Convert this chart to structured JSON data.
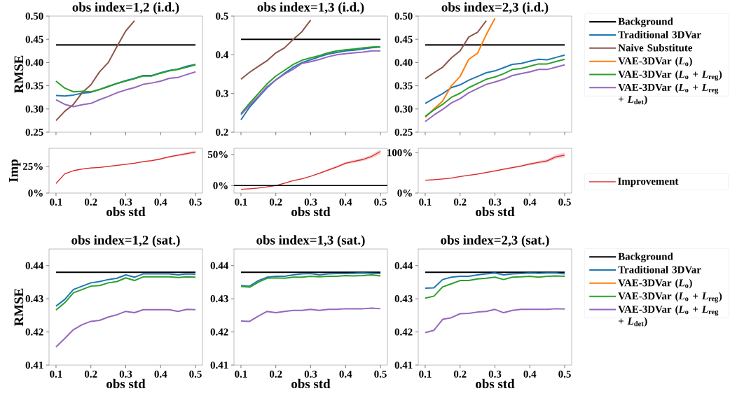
{
  "chart_data": [
    {
      "type": "line",
      "title": "obs index=1,2 (i.d.)",
      "ylabel": "RMSE",
      "tick_labels": "y",
      "x": [
        0.1,
        0.125,
        0.15,
        0.175,
        0.2,
        0.225,
        0.25,
        0.275,
        0.3,
        0.325,
        0.35,
        0.375,
        0.4,
        0.425,
        0.45,
        0.475,
        0.5
      ],
      "xlim": [
        0.08,
        0.52
      ],
      "xticks": [
        0.1,
        0.2,
        0.3,
        0.4,
        0.5
      ],
      "ylim": [
        0.25,
        0.5
      ],
      "yticks": [
        0.25,
        {
          "value": 0.3,
          "label": "0.30"
        },
        0.35,
        {
          "value": 0.4,
          "label": "0.40"
        },
        0.45,
        {
          "value": 0.5,
          "label": "0.50"
        }
      ],
      "series": [
        {
          "color": "#000000",
          "values": [
            0.438,
            0.438,
            0.438,
            0.438,
            0.438,
            0.438,
            0.438,
            0.438,
            0.438,
            0.438,
            0.438,
            0.438,
            0.438,
            0.438,
            0.438,
            0.438,
            0.438
          ]
        },
        {
          "color": "#1f77b4",
          "values": [
            0.329,
            0.328,
            0.33,
            0.334,
            0.336,
            0.342,
            0.348,
            0.355,
            0.361,
            0.366,
            0.372,
            0.372,
            0.378,
            0.383,
            0.386,
            0.392,
            0.396
          ]
        },
        {
          "color": "#8c564b",
          "values": [
            0.275,
            0.295,
            0.31,
            0.335,
            0.352,
            0.38,
            0.4,
            0.435,
            0.468,
            0.49,
            null,
            null,
            null,
            null,
            null,
            null,
            null
          ]
        },
        {
          "color": "#2ca02c",
          "values": [
            0.36,
            0.345,
            0.337,
            0.338,
            0.337,
            0.342,
            0.349,
            0.355,
            0.36,
            0.365,
            0.371,
            0.371,
            0.377,
            0.382,
            0.385,
            0.39,
            0.395
          ]
        },
        {
          "color": "#9467bd",
          "values": [
            0.32,
            0.31,
            0.305,
            0.309,
            0.312,
            0.32,
            0.327,
            0.335,
            0.341,
            0.346,
            0.353,
            0.356,
            0.36,
            0.366,
            0.368,
            0.374,
            0.38
          ]
        }
      ]
    },
    {
      "type": "line",
      "title": "obs index=1,3 (i.d.)",
      "tick_labels": "y",
      "x": [
        0.1,
        0.125,
        0.15,
        0.175,
        0.2,
        0.225,
        0.25,
        0.275,
        0.3,
        0.325,
        0.35,
        0.375,
        0.4,
        0.425,
        0.45,
        0.475,
        0.5
      ],
      "xlim": [
        0.08,
        0.52
      ],
      "xticks": [
        0.1,
        0.2,
        0.3,
        0.4,
        0.5
      ],
      "ylim": [
        0.2,
        0.5
      ],
      "yticks": [
        0.2,
        0.3,
        0.4,
        0.5
      ],
      "series": [
        {
          "color": "#000000",
          "values": [
            0.44,
            0.44,
            0.44,
            0.44,
            0.44,
            0.44,
            0.44,
            0.44,
            0.44,
            0.44,
            0.44,
            0.44,
            0.44,
            0.44,
            0.44,
            0.44,
            0.44
          ]
        },
        {
          "color": "#1f77b4",
          "values": [
            0.232,
            0.265,
            0.29,
            0.315,
            0.335,
            0.352,
            0.368,
            0.38,
            0.387,
            0.395,
            0.402,
            0.406,
            0.41,
            0.412,
            0.415,
            0.418,
            0.42
          ]
        },
        {
          "color": "#8c564b",
          "values": [
            0.337,
            0.355,
            0.37,
            0.385,
            0.405,
            0.418,
            0.44,
            0.46,
            0.49,
            null,
            null,
            null,
            null,
            null,
            null,
            null,
            null
          ]
        },
        {
          "color": "#2ca02c",
          "values": [
            0.248,
            0.275,
            0.3,
            0.325,
            0.345,
            0.36,
            0.375,
            0.386,
            0.392,
            0.398,
            0.405,
            0.41,
            0.413,
            0.415,
            0.418,
            0.42,
            0.421
          ]
        },
        {
          "color": "#9467bd",
          "values": [
            0.245,
            0.27,
            0.293,
            0.318,
            0.335,
            0.35,
            0.363,
            0.378,
            0.382,
            0.388,
            0.395,
            0.4,
            0.403,
            0.405,
            0.407,
            0.41,
            0.41
          ]
        }
      ]
    },
    {
      "type": "line",
      "title": "obs index=2,3 (i.d.)",
      "tick_labels": "y",
      "legend": "right",
      "x": [
        0.1,
        0.125,
        0.15,
        0.175,
        0.2,
        0.225,
        0.25,
        0.275,
        0.3,
        0.325,
        0.35,
        0.375,
        0.4,
        0.425,
        0.45,
        0.475,
        0.5
      ],
      "xlim": [
        0.08,
        0.52
      ],
      "xticks": [
        0.1,
        0.2,
        0.3,
        0.4,
        0.5
      ],
      "ylim": [
        0.25,
        0.5
      ],
      "yticks": [
        0.25,
        {
          "value": 0.3,
          "label": "0.30"
        },
        0.35,
        {
          "value": 0.4,
          "label": "0.40"
        },
        0.45,
        {
          "value": 0.5,
          "label": "0.50"
        }
      ],
      "series": [
        {
          "name": "Background",
          "color": "#000000",
          "values": [
            0.438,
            0.438,
            0.438,
            0.438,
            0.438,
            0.438,
            0.438,
            0.438,
            0.438,
            0.438,
            0.438,
            0.438,
            0.438,
            0.438,
            0.438,
            0.438,
            0.438
          ]
        },
        {
          "name": "Traditional 3DVar",
          "color": "#1f77b4",
          "values": [
            0.312,
            0.323,
            0.333,
            0.346,
            0.352,
            0.362,
            0.37,
            0.378,
            0.382,
            0.389,
            0.396,
            0.398,
            0.403,
            0.407,
            0.406,
            0.411,
            0.416
          ]
        },
        {
          "name": "Naive Substitute",
          "color": "#8c564b",
          "values": [
            0.365,
            0.378,
            0.39,
            0.41,
            0.425,
            0.455,
            0.465,
            0.49,
            null,
            null,
            null,
            null,
            null,
            null,
            null,
            null,
            null
          ]
        },
        {
          "name": "VAE-3DVar (*L*$_{o}$)",
          "color": "#ff7f0e",
          "values": [
            0.282,
            0.3,
            0.317,
            0.35,
            0.37,
            0.407,
            0.42,
            0.46,
            0.495,
            null,
            null,
            null,
            null,
            null,
            null,
            null,
            null
          ]
        },
        {
          "name": "VAE-3DVar (*L*$_{o}$ + *L*$_{reg}$)",
          "color": "#2ca02c",
          "values": [
            0.284,
            0.298,
            0.31,
            0.325,
            0.334,
            0.346,
            0.355,
            0.364,
            0.369,
            0.376,
            0.385,
            0.387,
            0.392,
            0.397,
            0.397,
            0.402,
            0.407
          ]
        },
        {
          "name": "VAE-3DVar (*L*$_{o}$ + *L*$_{reg}$ + *L*$_{det}$)",
          "color": "#9467bd",
          "values": [
            0.273,
            0.287,
            0.299,
            0.313,
            0.322,
            0.335,
            0.344,
            0.353,
            0.358,
            0.364,
            0.372,
            0.376,
            0.38,
            0.385,
            0.385,
            0.39,
            0.395
          ]
        }
      ]
    },
    {
      "type": "line",
      "xlabel": "obs std",
      "ylabel": "Imp",
      "x": [
        0.1,
        0.125,
        0.15,
        0.175,
        0.2,
        0.225,
        0.25,
        0.275,
        0.3,
        0.325,
        0.35,
        0.375,
        0.4,
        0.425,
        0.45,
        0.475,
        0.5
      ],
      "xlim": [
        0.08,
        0.52
      ],
      "xticks": [
        0.1,
        0.2,
        0.3,
        0.4,
        0.5
      ],
      "ylim": [
        0,
        42
      ],
      "yticks": [
        {
          "value": 0,
          "label": "0%"
        },
        {
          "value": 25,
          "label": "25%"
        }
      ],
      "series": [
        {
          "color": "#d62728",
          "values": [
            9,
            18,
            21,
            22.5,
            23.5,
            24,
            25,
            26,
            27,
            28,
            29.5,
            30.5,
            32,
            34,
            35.5,
            37,
            38.5
          ],
          "lower": [
            8.5,
            17.5,
            20.5,
            22,
            23,
            23.5,
            24.5,
            25.5,
            26.5,
            27.5,
            28.8,
            29.8,
            31.2,
            33,
            34.5,
            35.8,
            37.2
          ],
          "upper": [
            9.5,
            18.5,
            21.5,
            23,
            24,
            24.5,
            25.5,
            26.5,
            27.5,
            28.5,
            30.2,
            31.2,
            32.8,
            35,
            36.5,
            38.2,
            39.8
          ]
        }
      ]
    },
    {
      "type": "line",
      "xlabel": "obs std",
      "x": [
        0.1,
        0.125,
        0.15,
        0.175,
        0.2,
        0.225,
        0.25,
        0.275,
        0.3,
        0.325,
        0.35,
        0.375,
        0.4,
        0.425,
        0.45,
        0.475,
        0.5
      ],
      "xlim": [
        0.08,
        0.52
      ],
      "xticks": [
        0.1,
        0.2,
        0.3,
        0.4,
        0.5
      ],
      "ylim": [
        -12,
        60
      ],
      "yticks": [
        {
          "value": 0,
          "label": "0%"
        },
        {
          "value": 50,
          "label": "50%"
        }
      ],
      "ref_lines": [
        {
          "axis": "y",
          "value": 0,
          "color": "#000000"
        }
      ],
      "series": [
        {
          "color": "#d62728",
          "values": [
            -6,
            -5,
            -4,
            -2,
            0,
            4,
            8,
            11,
            15,
            20,
            25,
            30,
            36,
            39,
            42,
            47,
            55
          ],
          "lower": [
            -6.5,
            -5.5,
            -4,
            -2.5,
            -0.5,
            3,
            6.8,
            10.2,
            14,
            18.3,
            23.5,
            28.2,
            34,
            36.8,
            39.5,
            44,
            50.5
          ],
          "upper": [
            -5.5,
            -4.5,
            -3,
            -1.5,
            0.5,
            4,
            8.2,
            11.8,
            16,
            20.7,
            26.5,
            31.8,
            38,
            41.2,
            44.5,
            50,
            58.5
          ]
        }
      ]
    },
    {
      "type": "line",
      "xlabel": "obs std",
      "legend": "right",
      "x": [
        0.1,
        0.125,
        0.15,
        0.175,
        0.2,
        0.225,
        0.25,
        0.275,
        0.3,
        0.325,
        0.35,
        0.375,
        0.4,
        0.425,
        0.45,
        0.475,
        0.5
      ],
      "xlim": [
        0.08,
        0.52
      ],
      "xticks": [
        0.1,
        0.2,
        0.3,
        0.4,
        0.5
      ],
      "ylim": [
        0,
        111
      ],
      "yticks": [
        {
          "value": 0,
          "label": "0%"
        },
        {
          "value": 100,
          "label": "100%"
        }
      ],
      "series": [
        {
          "name": "Improvement",
          "color": "#d62728",
          "values": [
            32,
            33,
            35,
            37,
            41,
            44,
            47,
            51,
            55,
            59,
            63,
            67,
            72,
            76,
            80,
            90,
            94
          ],
          "lower": [
            31,
            32,
            34,
            36,
            40,
            43,
            45.5,
            49.5,
            53,
            57,
            60.5,
            64.5,
            69,
            72.5,
            76,
            85,
            88
          ],
          "upper": [
            33,
            34,
            36,
            38,
            42,
            45,
            48.5,
            52.5,
            57,
            61,
            65.5,
            69.5,
            75,
            79.5,
            84,
            95,
            100
          ]
        }
      ]
    },
    {
      "type": "line",
      "title": "obs index=1,2 (sat.)",
      "xlabel": "obs std",
      "ylabel": "RMSE",
      "x": [
        0.1,
        0.125,
        0.15,
        0.175,
        0.2,
        0.225,
        0.25,
        0.275,
        0.3,
        0.325,
        0.35,
        0.375,
        0.4,
        0.425,
        0.45,
        0.475,
        0.5
      ],
      "xlim": [
        0.08,
        0.52
      ],
      "xticks": [
        0.1,
        0.2,
        0.3,
        0.4,
        0.5
      ],
      "ylim": [
        0.41,
        0.445
      ],
      "yticks": [
        0.41,
        0.42,
        0.43,
        0.44
      ],
      "series": [
        {
          "color": "#000000",
          "values": [
            0.438,
            0.438,
            0.438,
            0.438,
            0.438,
            0.438,
            0.438,
            0.438,
            0.438,
            0.438,
            0.438,
            0.438,
            0.438,
            0.438,
            0.438,
            0.438,
            0.438
          ]
        },
        {
          "color": "#1f77b4",
          "values": [
            0.4278,
            0.4298,
            0.4328,
            0.4338,
            0.4348,
            0.4352,
            0.4358,
            0.4362,
            0.4372,
            0.4365,
            0.4375,
            0.4375,
            0.4375,
            0.4375,
            0.4372,
            0.4375,
            0.4374
          ]
        },
        {
          "color": "#2ca02c",
          "values": [
            0.4266,
            0.4288,
            0.4318,
            0.4328,
            0.4338,
            0.434,
            0.4348,
            0.4352,
            0.4363,
            0.4355,
            0.4366,
            0.4366,
            0.4366,
            0.4366,
            0.4364,
            0.4366,
            0.4365
          ]
        },
        {
          "color": "#9467bd",
          "values": [
            0.4155,
            0.418,
            0.4207,
            0.4222,
            0.4232,
            0.4235,
            0.4245,
            0.4252,
            0.4262,
            0.4258,
            0.4267,
            0.4267,
            0.4267,
            0.4267,
            0.4262,
            0.4268,
            0.4267
          ]
        }
      ]
    },
    {
      "type": "line",
      "title": "obs index=1,3 (sat.)",
      "xlabel": "obs std",
      "x": [
        0.1,
        0.125,
        0.15,
        0.175,
        0.2,
        0.225,
        0.25,
        0.275,
        0.3,
        0.325,
        0.35,
        0.375,
        0.4,
        0.425,
        0.45,
        0.475,
        0.5
      ],
      "xlim": [
        0.08,
        0.52
      ],
      "xticks": [
        0.1,
        0.2,
        0.3,
        0.4,
        0.5
      ],
      "ylim": [
        0.41,
        0.445
      ],
      "yticks": [
        0.41,
        0.42,
        0.43,
        0.44
      ],
      "series": [
        {
          "color": "#000000",
          "values": [
            0.438,
            0.438,
            0.438,
            0.438,
            0.438,
            0.438,
            0.438,
            0.438,
            0.438,
            0.438,
            0.438,
            0.438,
            0.438,
            0.438,
            0.438,
            0.438,
            0.438
          ]
        },
        {
          "color": "#1f77b4",
          "values": [
            0.434,
            0.4338,
            0.4355,
            0.4365,
            0.4368,
            0.4368,
            0.4372,
            0.4375,
            0.4376,
            0.4372,
            0.4375,
            0.4376,
            0.4376,
            0.4377,
            0.4378,
            0.4377,
            0.4376
          ]
        },
        {
          "color": "#2ca02c",
          "values": [
            0.4337,
            0.4335,
            0.435,
            0.4362,
            0.4363,
            0.4362,
            0.4365,
            0.4365,
            0.4368,
            0.4366,
            0.4368,
            0.4368,
            0.437,
            0.4369,
            0.437,
            0.4372,
            0.4369
          ]
        },
        {
          "color": "#9467bd",
          "values": [
            0.4233,
            0.4232,
            0.4248,
            0.4262,
            0.4258,
            0.4262,
            0.4265,
            0.4265,
            0.4268,
            0.4265,
            0.4268,
            0.4268,
            0.427,
            0.427,
            0.427,
            0.4272,
            0.427
          ]
        }
      ]
    },
    {
      "type": "line",
      "title": "obs index=2,3 (sat.)",
      "xlabel": "obs std",
      "legend": "right",
      "x": [
        0.1,
        0.125,
        0.15,
        0.175,
        0.2,
        0.225,
        0.25,
        0.275,
        0.3,
        0.325,
        0.35,
        0.375,
        0.4,
        0.425,
        0.45,
        0.475,
        0.5
      ],
      "xlim": [
        0.08,
        0.52
      ],
      "xticks": [
        0.1,
        0.2,
        0.3,
        0.4,
        0.5
      ],
      "ylim": [
        0.41,
        0.445
      ],
      "yticks": [
        0.41,
        0.42,
        0.43,
        0.44
      ],
      "series": [
        {
          "name": "Background",
          "color": "#000000",
          "values": [
            0.438,
            0.438,
            0.438,
            0.438,
            0.438,
            0.438,
            0.438,
            0.438,
            0.438,
            0.438,
            0.438,
            0.438,
            0.438,
            0.438,
            0.438,
            0.438,
            0.438
          ]
        },
        {
          "name": "Traditional 3DVar",
          "color": "#1f77b4",
          "values": [
            0.4332,
            0.4333,
            0.4358,
            0.4365,
            0.4368,
            0.4368,
            0.4372,
            0.4375,
            0.4378,
            0.4372,
            0.4375,
            0.4376,
            0.4378,
            0.4377,
            0.4378,
            0.4378,
            0.4375
          ]
        },
        {
          "name": "VAE-3DVar (*L*$_{o}$)",
          "color": "#ff7f0e",
          "values": [
            null,
            null,
            null,
            null,
            null,
            null,
            null,
            null,
            null,
            null,
            null,
            null,
            null,
            null,
            null,
            null,
            null
          ]
        },
        {
          "name": "VAE-3DVar (*L*$_{o}$ + *L*$_{reg}$)",
          "color": "#2ca02c",
          "values": [
            0.4302,
            0.4308,
            0.4336,
            0.4345,
            0.4355,
            0.4355,
            0.436,
            0.4362,
            0.4365,
            0.4358,
            0.4365,
            0.4366,
            0.4368,
            0.4365,
            0.4368,
            0.4369,
            0.4368
          ]
        },
        {
          "name": "VAE-3DVar (*L*$_{o}$ + *L*$_{reg}$ + *L*$_{det}$)",
          "color": "#9467bd",
          "values": [
            0.4198,
            0.4205,
            0.4238,
            0.4243,
            0.4255,
            0.4256,
            0.426,
            0.4262,
            0.4268,
            0.4258,
            0.4265,
            0.4268,
            0.4268,
            0.4268,
            0.4268,
            0.427,
            0.4269
          ]
        }
      ]
    }
  ]
}
